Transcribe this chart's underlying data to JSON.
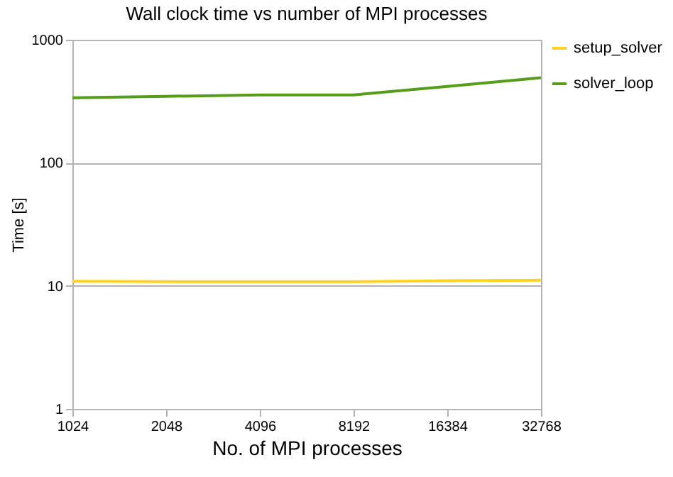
{
  "chart_data": {
    "type": "line",
    "title": "Wall clock time vs number of MPI processes",
    "xlabel": "No. of MPI processes",
    "ylabel": "Time [s]",
    "x": [
      1024,
      2048,
      4096,
      8192,
      16384,
      32768
    ],
    "series": [
      {
        "name": "setup_solver",
        "color": "#ffd320",
        "values": [
          10.9,
          10.8,
          10.8,
          10.8,
          11.0,
          11.1
        ]
      },
      {
        "name": "solver_loop",
        "color": "#579d1c",
        "values": [
          338,
          347,
          356,
          356,
          417,
          492
        ]
      }
    ],
    "log": "xy",
    "xlim": [
      1024,
      32768
    ],
    "xticks": [
      1024,
      2048,
      4096,
      8192,
      16384,
      32768
    ],
    "ylim": [
      1,
      1000
    ],
    "yticks": [
      1,
      10,
      100,
      1000
    ],
    "grid": "y",
    "legend": "right"
  }
}
